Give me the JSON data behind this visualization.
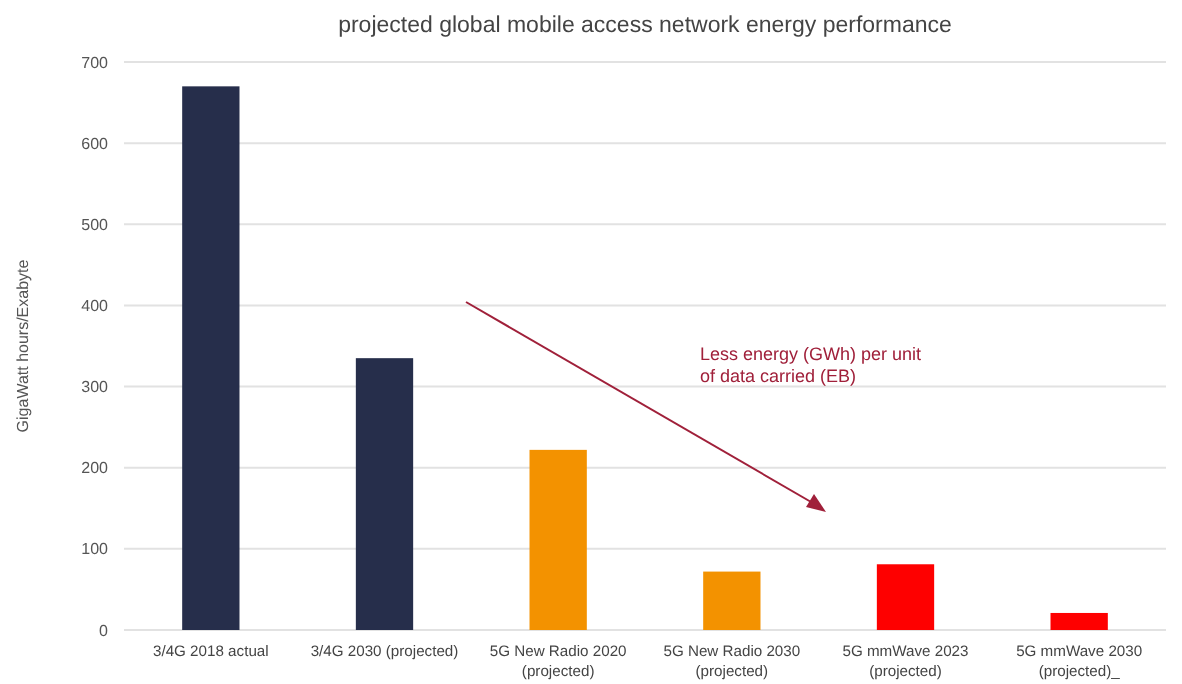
{
  "chart_data": {
    "type": "bar",
    "title": "projected global mobile access network energy performance",
    "ylabel": "GigaWatt hours/Exabyte",
    "categories": [
      "3/4G 2018 actual",
      "3/4G 2030 (projected)",
      "5G New Radio 2020 (projected)",
      "5G New Radio 2030 (projected)",
      "5G mmWave 2023 (projected)",
      "5G mmWave 2030 (projected)_"
    ],
    "values": [
      670,
      335,
      222,
      72,
      81,
      21
    ],
    "colors": [
      "#262e4b",
      "#262e4b",
      "#f39200",
      "#f39200",
      "#fe0000",
      "#fe0000"
    ],
    "ylim": [
      0,
      700
    ],
    "yticks": [
      0,
      100,
      200,
      300,
      400,
      500,
      600,
      700
    ],
    "grid": "y",
    "annotations": [
      "Less energy (GWh) per unit of data carried (EB)"
    ]
  }
}
